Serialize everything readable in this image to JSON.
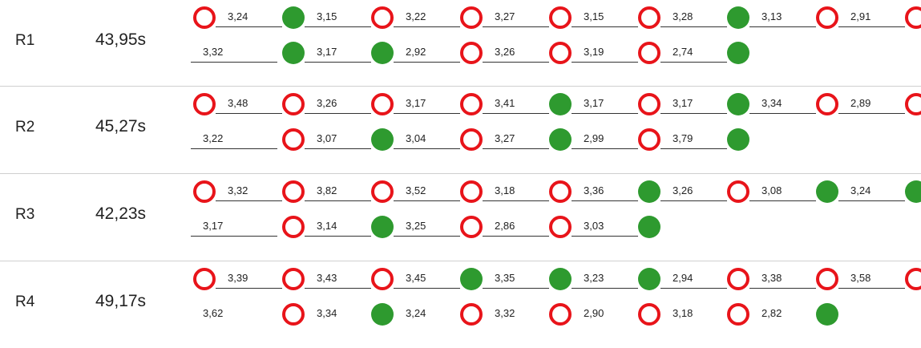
{
  "rows": [
    {
      "label": "R1",
      "time": "43,95s",
      "line1": [
        {
          "m": "open",
          "s": "3,24"
        },
        {
          "m": "filled",
          "s": "3,15"
        },
        {
          "m": "open",
          "s": "3,22"
        },
        {
          "m": "open",
          "s": "3,27"
        },
        {
          "m": "open",
          "s": "3,15"
        },
        {
          "m": "open",
          "s": "3,28"
        },
        {
          "m": "filled",
          "s": "3,13"
        },
        {
          "m": "open",
          "s": "2,91"
        },
        {
          "m": "open",
          "s": ""
        }
      ],
      "line2": [
        {
          "m": "",
          "s": "3,32"
        },
        {
          "m": "filled",
          "s": "3,17"
        },
        {
          "m": "filled",
          "s": "2,92"
        },
        {
          "m": "open",
          "s": "3,26"
        },
        {
          "m": "open",
          "s": "3,19"
        },
        {
          "m": "open",
          "s": "2,74"
        },
        {
          "m": "filled",
          "s": ""
        }
      ]
    },
    {
      "label": "R2",
      "time": "45,27s",
      "line1": [
        {
          "m": "open",
          "s": "3,48"
        },
        {
          "m": "open",
          "s": "3,26"
        },
        {
          "m": "open",
          "s": "3,17"
        },
        {
          "m": "open",
          "s": "3,41"
        },
        {
          "m": "filled",
          "s": "3,17"
        },
        {
          "m": "open",
          "s": "3,17"
        },
        {
          "m": "filled",
          "s": "3,34"
        },
        {
          "m": "open",
          "s": "2,89"
        },
        {
          "m": "open",
          "s": ""
        }
      ],
      "line2": [
        {
          "m": "",
          "s": "3,22"
        },
        {
          "m": "open",
          "s": "3,07"
        },
        {
          "m": "filled",
          "s": "3,04"
        },
        {
          "m": "open",
          "s": "3,27"
        },
        {
          "m": "filled",
          "s": "2,99"
        },
        {
          "m": "open",
          "s": "3,79"
        },
        {
          "m": "filled",
          "s": ""
        }
      ]
    },
    {
      "label": "R3",
      "time": "42,23s",
      "line1": [
        {
          "m": "open",
          "s": "3,32"
        },
        {
          "m": "open",
          "s": "3,82"
        },
        {
          "m": "open",
          "s": "3,52"
        },
        {
          "m": "open",
          "s": "3,18"
        },
        {
          "m": "open",
          "s": "3,36"
        },
        {
          "m": "filled",
          "s": "3,26"
        },
        {
          "m": "open",
          "s": "3,08"
        },
        {
          "m": "filled",
          "s": "3,24"
        },
        {
          "m": "filled",
          "s": ""
        }
      ],
      "line2": [
        {
          "m": "",
          "s": "3,17"
        },
        {
          "m": "open",
          "s": "3,14"
        },
        {
          "m": "filled",
          "s": "3,25"
        },
        {
          "m": "open",
          "s": "2,86"
        },
        {
          "m": "open",
          "s": "3,03"
        },
        {
          "m": "filled",
          "s": ""
        }
      ]
    },
    {
      "label": "R4",
      "time": "49,17s",
      "line1": [
        {
          "m": "open",
          "s": "3,39"
        },
        {
          "m": "open",
          "s": "3,43"
        },
        {
          "m": "open",
          "s": "3,45"
        },
        {
          "m": "filled",
          "s": "3,35"
        },
        {
          "m": "filled",
          "s": "3,23"
        },
        {
          "m": "filled",
          "s": "2,94"
        },
        {
          "m": "open",
          "s": "3,38"
        },
        {
          "m": "open",
          "s": "3,58"
        },
        {
          "m": "open",
          "s": ""
        }
      ],
      "line2": [
        {
          "m": "",
          "s": "3,62"
        },
        {
          "m": "open",
          "s": "3,34"
        },
        {
          "m": "filled",
          "s": "3,24"
        },
        {
          "m": "open",
          "s": "3,32"
        },
        {
          "m": "open",
          "s": "2,90"
        },
        {
          "m": "open",
          "s": "3,18"
        },
        {
          "m": "open",
          "s": "2,82"
        },
        {
          "m": "filled",
          "s": ""
        }
      ]
    }
  ]
}
